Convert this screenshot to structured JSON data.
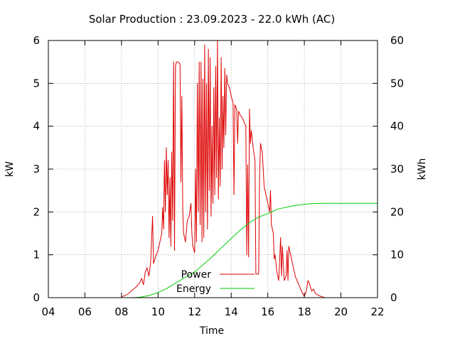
{
  "chart_data": {
    "type": "line",
    "title": "Solar Production : 23.09.2023 - 22.0 kWh (AC)",
    "xlabel": "Time",
    "ylabel": "kW",
    "y2label": "kWh",
    "xlim": [
      4,
      22
    ],
    "ylim": [
      0,
      6
    ],
    "y2lim": [
      0,
      60
    ],
    "x_ticks": [
      "04",
      "06",
      "08",
      "10",
      "12",
      "14",
      "16",
      "18",
      "20",
      "22"
    ],
    "y_ticks": [
      "0",
      "1",
      "2",
      "3",
      "4",
      "5",
      "6"
    ],
    "y2_ticks": [
      "0",
      "10",
      "20",
      "30",
      "40",
      "50",
      "60"
    ],
    "grid": true,
    "legend": "bottom-center",
    "colors": {
      "power": "#dd0000",
      "energy": "#00cc00",
      "grid": "#a0a0a0",
      "axis": "#000000"
    },
    "series": [
      {
        "name": "Power",
        "axis": "y",
        "points": [
          [
            8.0,
            0.02
          ],
          [
            8.2,
            0.05
          ],
          [
            8.4,
            0.1
          ],
          [
            8.6,
            0.18
          ],
          [
            8.8,
            0.25
          ],
          [
            9.0,
            0.35
          ],
          [
            9.1,
            0.45
          ],
          [
            9.2,
            0.3
          ],
          [
            9.3,
            0.6
          ],
          [
            9.4,
            0.7
          ],
          [
            9.5,
            0.5
          ],
          [
            9.6,
            0.85
          ],
          [
            9.7,
            1.9
          ],
          [
            9.75,
            0.8
          ],
          [
            9.9,
            1.0
          ],
          [
            10.0,
            1.1
          ],
          [
            10.1,
            1.3
          ],
          [
            10.2,
            1.5
          ],
          [
            10.25,
            2.1
          ],
          [
            10.3,
            1.6
          ],
          [
            10.35,
            3.2
          ],
          [
            10.4,
            2.0
          ],
          [
            10.45,
            3.5
          ],
          [
            10.5,
            2.4
          ],
          [
            10.55,
            3.2
          ],
          [
            10.6,
            1.4
          ],
          [
            10.65,
            2.8
          ],
          [
            10.7,
            1.2
          ],
          [
            10.75,
            3.4
          ],
          [
            10.8,
            1.8
          ],
          [
            10.85,
            5.5
          ],
          [
            10.9,
            1.1
          ],
          [
            10.95,
            5.4
          ],
          [
            11.0,
            5.5
          ],
          [
            11.1,
            5.5
          ],
          [
            11.2,
            5.45
          ],
          [
            11.25,
            2.7
          ],
          [
            11.3,
            4.7
          ],
          [
            11.35,
            2.0
          ],
          [
            11.4,
            1.5
          ],
          [
            11.5,
            1.3
          ],
          [
            11.6,
            1.8
          ],
          [
            11.7,
            1.9
          ],
          [
            11.8,
            2.2
          ],
          [
            11.85,
            1.5
          ],
          [
            11.9,
            1.2
          ],
          [
            12.0,
            1.05
          ],
          [
            12.05,
            3.0
          ],
          [
            12.1,
            1.3
          ],
          [
            12.15,
            5.0
          ],
          [
            12.2,
            2.0
          ],
          [
            12.25,
            5.5
          ],
          [
            12.3,
            1.7
          ],
          [
            12.35,
            5.5
          ],
          [
            12.4,
            1.3
          ],
          [
            12.45,
            5.1
          ],
          [
            12.5,
            1.4
          ],
          [
            12.55,
            5.9
          ],
          [
            12.6,
            2.0
          ],
          [
            12.65,
            5.0
          ],
          [
            12.7,
            1.6
          ],
          [
            12.75,
            5.8
          ],
          [
            12.8,
            2.5
          ],
          [
            12.85,
            5.6
          ],
          [
            12.9,
            1.9
          ],
          [
            12.95,
            4.0
          ],
          [
            13.0,
            2.2
          ],
          [
            13.05,
            4.9
          ],
          [
            13.1,
            2.4
          ],
          [
            13.15,
            5.4
          ],
          [
            13.2,
            2.8
          ],
          [
            13.25,
            6.0
          ],
          [
            13.3,
            2.3
          ],
          [
            13.35,
            4.2
          ],
          [
            13.4,
            2.6
          ],
          [
            13.45,
            5.6
          ],
          [
            13.5,
            3.0
          ],
          [
            13.55,
            4.7
          ],
          [
            13.6,
            3.5
          ],
          [
            13.65,
            5.35
          ],
          [
            13.7,
            3.8
          ],
          [
            13.75,
            5.2
          ],
          [
            13.8,
            5.0
          ],
          [
            13.9,
            4.9
          ],
          [
            14.0,
            4.7
          ],
          [
            14.1,
            4.55
          ],
          [
            14.15,
            2.4
          ],
          [
            14.2,
            4.5
          ],
          [
            14.3,
            4.4
          ],
          [
            14.35,
            3.6
          ],
          [
            14.4,
            4.35
          ],
          [
            14.5,
            4.25
          ],
          [
            14.6,
            4.2
          ],
          [
            14.7,
            4.1
          ],
          [
            14.8,
            4.0
          ],
          [
            14.85,
            1.0
          ],
          [
            14.9,
            3.1
          ],
          [
            14.95,
            0.95
          ],
          [
            15.0,
            4.4
          ],
          [
            15.05,
            3.6
          ],
          [
            15.1,
            3.9
          ],
          [
            15.2,
            3.5
          ],
          [
            15.3,
            3.2
          ],
          [
            15.35,
            0.55
          ],
          [
            15.5,
            0.55
          ],
          [
            15.55,
            2.8
          ],
          [
            15.6,
            3.6
          ],
          [
            15.7,
            3.4
          ],
          [
            15.8,
            2.6
          ],
          [
            15.9,
            2.4
          ],
          [
            16.0,
            2.2
          ],
          [
            16.1,
            2.0
          ],
          [
            16.15,
            2.5
          ],
          [
            16.2,
            1.7
          ],
          [
            16.3,
            1.5
          ],
          [
            16.35,
            0.9
          ],
          [
            16.4,
            1.0
          ],
          [
            16.5,
            0.6
          ],
          [
            16.6,
            0.4
          ],
          [
            16.7,
            1.4
          ],
          [
            16.75,
            0.5
          ],
          [
            16.8,
            1.2
          ],
          [
            16.9,
            0.4
          ],
          [
            17.0,
            0.5
          ],
          [
            17.05,
            1.1
          ],
          [
            17.1,
            0.4
          ],
          [
            17.15,
            1.2
          ],
          [
            17.2,
            1.1
          ],
          [
            17.3,
            0.9
          ],
          [
            17.4,
            0.7
          ],
          [
            17.5,
            0.5
          ],
          [
            17.6,
            0.4
          ],
          [
            17.7,
            0.3
          ],
          [
            17.8,
            0.2
          ],
          [
            17.9,
            0.1
          ],
          [
            18.0,
            0.03
          ],
          [
            18.1,
            0.15
          ],
          [
            18.2,
            0.4
          ],
          [
            18.3,
            0.3
          ],
          [
            18.4,
            0.15
          ],
          [
            18.5,
            0.2
          ],
          [
            18.6,
            0.1
          ],
          [
            18.7,
            0.07
          ],
          [
            18.8,
            0.05
          ],
          [
            18.9,
            0.03
          ],
          [
            19.0,
            0.02
          ],
          [
            19.1,
            0.0
          ]
        ]
      },
      {
        "name": "Energy",
        "axis": "y2",
        "points": [
          [
            8.6,
            0.0
          ],
          [
            9.0,
            0.1
          ],
          [
            9.5,
            0.5
          ],
          [
            10.0,
            1.2
          ],
          [
            10.5,
            2.2
          ],
          [
            11.0,
            3.5
          ],
          [
            11.5,
            4.8
          ],
          [
            12.0,
            6.0
          ],
          [
            12.5,
            7.8
          ],
          [
            13.0,
            9.7
          ],
          [
            13.5,
            11.8
          ],
          [
            14.0,
            13.8
          ],
          [
            14.5,
            15.8
          ],
          [
            15.0,
            17.5
          ],
          [
            15.5,
            18.8
          ],
          [
            16.0,
            19.6
          ],
          [
            16.5,
            20.6
          ],
          [
            17.0,
            21.1
          ],
          [
            17.5,
            21.5
          ],
          [
            18.0,
            21.8
          ],
          [
            18.5,
            21.95
          ],
          [
            19.0,
            22.0
          ],
          [
            22.0,
            22.0
          ]
        ]
      }
    ]
  }
}
